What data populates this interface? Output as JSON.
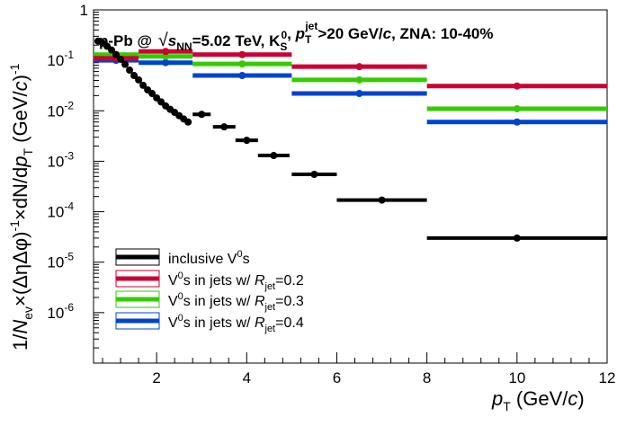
{
  "chart_data": {
    "type": "scatter",
    "title": {
      "system": "p-Pb @ ",
      "energy_sym": "s",
      "energy_sub": "NN",
      "energy_val": "=5.02 TeV, K",
      "k_sub": "S",
      "k_sup": "0",
      "pt_sym": "p",
      "pt_sub": "T",
      "pt_sup": "jet",
      "cut": ">20 GeV/",
      "cut_unit": "c",
      "centrality": ", ZNA: 10-40%"
    },
    "xlabel": {
      "sym": "p",
      "sub": "T",
      "unit_pre": " (GeV/",
      "unit_it": "c",
      "unit_post": ")"
    },
    "ylabel": {
      "p1": "1/",
      "n": "N",
      "n_sub": "ev",
      "p2": "×(ΔηΔφ)",
      "exp1": "-1",
      "p3": "×dN/d",
      "p": "p",
      "p_sub": "T",
      "p4": "  (GeV/",
      "c": "c",
      "p5": ")",
      "exp2": "-1"
    },
    "xlim": [
      0.6,
      12
    ],
    "ylim": [
      1e-07,
      1
    ],
    "y_scale": "log",
    "x_ticks": [
      "2",
      "4",
      "6",
      "8",
      "10",
      "12"
    ],
    "y_ticks": [
      "1",
      "10",
      "10",
      "10",
      "10",
      "10",
      "10"
    ],
    "y_tick_exps": [
      "",
      "-1",
      "-2",
      "-3",
      "-4",
      "-5",
      "-6"
    ],
    "legend_position": "bottom-left",
    "series": [
      {
        "name": "inclusive V",
        "name_sup": "0",
        "name_post": "s",
        "color": "#000000",
        "x": [
          0.7,
          0.8,
          0.9,
          1.0,
          1.1,
          1.2,
          1.3,
          1.4,
          1.5,
          1.6,
          1.7,
          1.8,
          1.9,
          2.0,
          2.1,
          2.2,
          2.3,
          2.4,
          2.5,
          2.6,
          2.7,
          3.0,
          3.5,
          4.0,
          4.6,
          5.5,
          7.0,
          10.0
        ],
        "xerr": [
          0.05,
          0.05,
          0.05,
          0.05,
          0.05,
          0.05,
          0.05,
          0.05,
          0.05,
          0.05,
          0.05,
          0.05,
          0.05,
          0.05,
          0.05,
          0.05,
          0.05,
          0.05,
          0.05,
          0.05,
          0.05,
          0.2,
          0.25,
          0.25,
          0.35,
          0.5,
          1.0,
          2.0
        ],
        "y": [
          0.24,
          0.22,
          0.19,
          0.16,
          0.13,
          0.105,
          0.083,
          0.064,
          0.05,
          0.041,
          0.032,
          0.026,
          0.022,
          0.018,
          0.015,
          0.0125,
          0.0107,
          0.0093,
          0.008,
          0.0069,
          0.006,
          0.0085,
          0.0048,
          0.0026,
          0.0013,
          0.00055,
          0.00017,
          3e-05
        ]
      },
      {
        "name": "V",
        "name_sup": "0",
        "name_post": "s in jets w/ ",
        "r_sym": "R",
        "r_sub": "jet",
        "r_val": "=0.2",
        "color": "#cc0033",
        "x": [
          1.1,
          2.2,
          3.9,
          6.5,
          10.0
        ],
        "xerr": [
          0.5,
          0.6,
          1.1,
          1.5,
          2.0
        ],
        "y": [
          0.11,
          0.15,
          0.13,
          0.075,
          0.031
        ]
      },
      {
        "name": "V",
        "name_sup": "0",
        "name_post": "s in jets w/ ",
        "r_sym": "R",
        "r_sub": "jet",
        "r_val": "=0.3",
        "color": "#33cc00",
        "x": [
          1.1,
          2.2,
          3.9,
          6.5,
          10.0
        ],
        "xerr": [
          0.5,
          0.6,
          1.1,
          1.5,
          2.0
        ],
        "y": [
          0.13,
          0.12,
          0.085,
          0.041,
          0.011
        ]
      },
      {
        "name": "V",
        "name_sup": "0",
        "name_post": "s in jets w/ ",
        "r_sym": "R",
        "r_sub": "jet",
        "r_val": "=0.4",
        "color": "#0044cc",
        "x": [
          1.1,
          2.2,
          3.9,
          6.5,
          10.0
        ],
        "xerr": [
          0.5,
          0.6,
          1.1,
          1.5,
          2.0
        ],
        "y": [
          0.1,
          0.09,
          0.05,
          0.022,
          0.006
        ]
      }
    ]
  }
}
